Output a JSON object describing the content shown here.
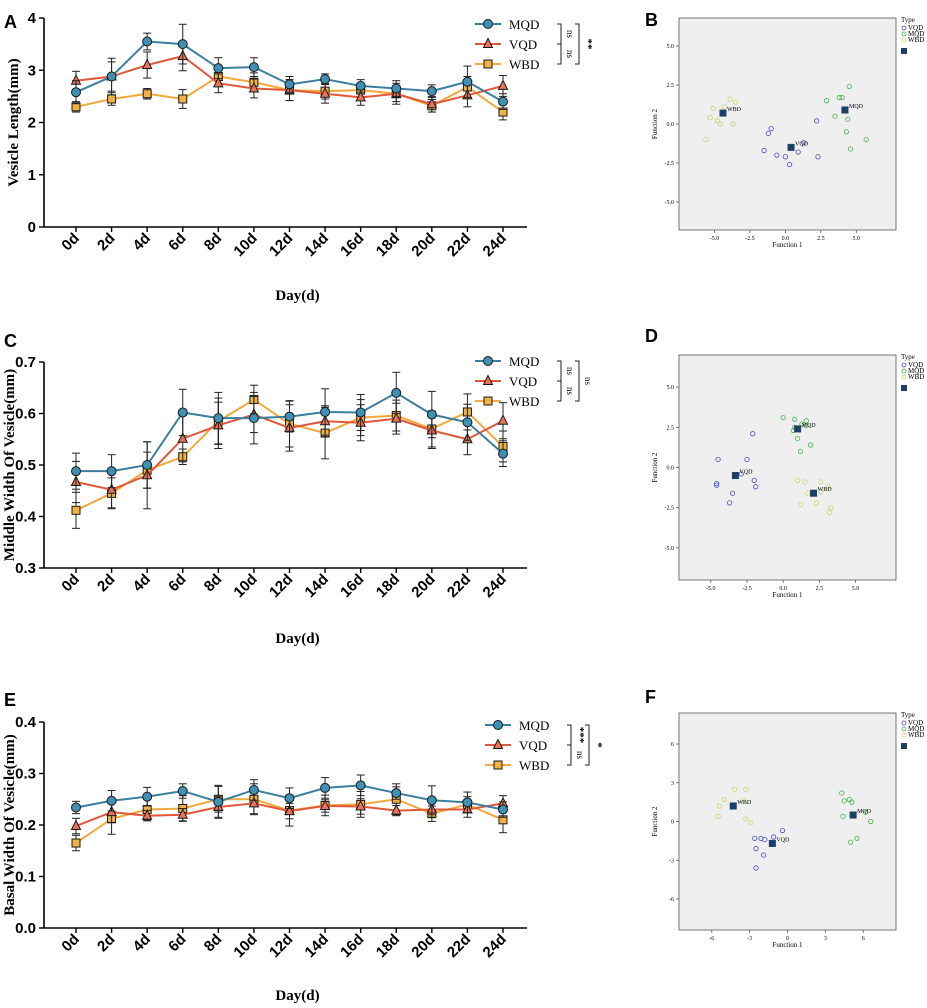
{
  "colors": {
    "MQD": "#3a7fa0",
    "VQD": "#e0573a",
    "WBD": "#f0a93a",
    "MQD_fill": "#3f90b3",
    "VQD_fill": "#e87357",
    "WBD_fill": "#f2b144",
    "centroid": "#1c3f66",
    "plot_bg": "#efefef",
    "disc_MQD": "#3fb24a",
    "disc_VQD": "#4a4ac0",
    "disc_WBD": "#c9d46a"
  },
  "chart_data": [
    {
      "id": "A",
      "letter": "A",
      "type": "line",
      "title": "",
      "xlabel": "Day(d)",
      "ylabel": "Vesicle Length(mm)",
      "ylim": [
        0,
        4
      ],
      "yticks": [
        0,
        1,
        2,
        3,
        4
      ],
      "ytick_labels": [
        "0",
        "1",
        "2",
        "3",
        "4"
      ],
      "categories": [
        "0d",
        "2d",
        "4d",
        "6d",
        "8d",
        "10d",
        "12d",
        "14d",
        "16d",
        "18d",
        "20d",
        "22d",
        "24d"
      ],
      "series": [
        {
          "name": "MQD",
          "marker": "circle",
          "values": [
            2.58,
            2.88,
            3.55,
            3.5,
            3.04,
            3.06,
            2.73,
            2.83,
            2.7,
            2.65,
            2.6,
            2.78,
            2.4
          ],
          "err": [
            0.22,
            0.35,
            0.16,
            0.38,
            0.2,
            0.18,
            0.15,
            0.1,
            0.12,
            0.15,
            0.12,
            0.3,
            0.15
          ]
        },
        {
          "name": "VQD",
          "marker": "triangle",
          "values": [
            2.8,
            2.88,
            3.1,
            3.27,
            2.75,
            2.65,
            2.62,
            2.55,
            2.48,
            2.55,
            2.35,
            2.52,
            2.7
          ],
          "err": [
            0.18,
            0.28,
            0.25,
            0.28,
            0.18,
            0.18,
            0.2,
            0.18,
            0.15,
            0.2,
            0.15,
            0.22,
            0.2
          ]
        },
        {
          "name": "WBD",
          "marker": "square",
          "values": [
            2.3,
            2.45,
            2.55,
            2.45,
            2.88,
            2.77,
            2.62,
            2.6,
            2.62,
            2.55,
            2.32,
            2.68,
            2.2
          ],
          "err": [
            0.1,
            0.12,
            0.1,
            0.18,
            0.18,
            0.18,
            0.2,
            0.15,
            0.12,
            0.15,
            0.12,
            0.2,
            0.15
          ]
        }
      ],
      "significance": {
        "inner_top": "ns",
        "inner_bottom": "ns",
        "outer": "**"
      }
    },
    {
      "id": "C",
      "letter": "C",
      "type": "line",
      "title": "",
      "xlabel": "Day(d)",
      "ylabel": "Middle Width Of Vesicle(mm)",
      "ylim": [
        0.3,
        0.7
      ],
      "yticks": [
        0.3,
        0.4,
        0.5,
        0.6,
        0.7
      ],
      "ytick_labels": [
        "0.3",
        "0.4",
        "0.5",
        "0.6",
        "0.7"
      ],
      "categories": [
        "0d",
        "2d",
        "4d",
        "6d",
        "8d",
        "10d",
        "12d",
        "14d",
        "16d",
        "18d",
        "20d",
        "22d",
        "24d"
      ],
      "series": [
        {
          "name": "MQD",
          "marker": "circle",
          "values": [
            0.488,
            0.488,
            0.5,
            0.602,
            0.591,
            0.591,
            0.594,
            0.603,
            0.602,
            0.64,
            0.598,
            0.583,
            0.522
          ],
          "err": [
            0.035,
            0.032,
            0.045,
            0.045,
            0.05,
            0.05,
            0.03,
            0.045,
            0.035,
            0.04,
            0.045,
            0.035,
            0.025
          ]
        },
        {
          "name": "VQD",
          "marker": "triangle",
          "values": [
            0.467,
            0.452,
            0.48,
            0.551,
            0.577,
            0.598,
            0.572,
            0.585,
            0.582,
            0.59,
            0.567,
            0.55,
            0.586
          ],
          "err": [
            0.04,
            0.035,
            0.065,
            0.045,
            0.045,
            0.035,
            0.045,
            0.03,
            0.035,
            0.03,
            0.035,
            0.03,
            0.035
          ]
        },
        {
          "name": "WBD",
          "marker": "square",
          "values": [
            0.412,
            0.445,
            0.49,
            0.516,
            0.585,
            0.627,
            0.58,
            0.562,
            0.592,
            0.596,
            0.57,
            0.603,
            0.536
          ],
          "err": [
            0.035,
            0.03,
            0.035,
            0.015,
            0.045,
            0.028,
            0.045,
            0.05,
            0.035,
            0.03,
            0.035,
            0.035,
            0.03
          ]
        }
      ],
      "significance": {
        "inner_top": "ns",
        "inner_bottom": "ns",
        "outer": "ns"
      }
    },
    {
      "id": "E",
      "letter": "E",
      "type": "line",
      "title": "",
      "xlabel": "Day(d)",
      "ylabel": "Basal Width Of Vesicle(mm)",
      "ylim": [
        0,
        0.4
      ],
      "yticks": [
        0,
        0.1,
        0.2,
        0.3,
        0.4
      ],
      "ytick_labels": [
        "0.0",
        "0.1",
        "0.2",
        "0.3",
        "0.4"
      ],
      "categories": [
        "0d",
        "2d",
        "4d",
        "6d",
        "8d",
        "10d",
        "12d",
        "14d",
        "16d",
        "18d",
        "20d",
        "22d",
        "24d"
      ],
      "series": [
        {
          "name": "MQD",
          "marker": "circle",
          "values": [
            0.234,
            0.247,
            0.255,
            0.266,
            0.245,
            0.268,
            0.252,
            0.272,
            0.277,
            0.262,
            0.248,
            0.244,
            0.23
          ],
          "err": [
            0.012,
            0.02,
            0.018,
            0.014,
            0.032,
            0.02,
            0.02,
            0.02,
            0.02,
            0.012,
            0.028,
            0.02,
            0.015
          ]
        },
        {
          "name": "VQD",
          "marker": "triangle",
          "values": [
            0.198,
            0.225,
            0.218,
            0.22,
            0.235,
            0.242,
            0.227,
            0.237,
            0.236,
            0.228,
            0.23,
            0.23,
            0.242
          ],
          "err": [
            0.015,
            0.02,
            0.01,
            0.012,
            0.02,
            0.02,
            0.015,
            0.012,
            0.015,
            0.01,
            0.015,
            0.015,
            0.015
          ]
        },
        {
          "name": "WBD",
          "marker": "square",
          "values": [
            0.165,
            0.212,
            0.23,
            0.232,
            0.25,
            0.25,
            0.228,
            0.238,
            0.24,
            0.25,
            0.222,
            0.24,
            0.21
          ],
          "err": [
            0.015,
            0.03,
            0.02,
            0.025,
            0.025,
            0.03,
            0.03,
            0.02,
            0.025,
            0.03,
            0.015,
            0.015,
            0.025
          ]
        }
      ],
      "significance": {
        "inner_top": "***",
        "inner_bottom": "ns",
        "outer": "*"
      }
    },
    {
      "id": "B",
      "letter": "B",
      "type": "scatter",
      "xlabel": "Function 1",
      "ylabel": "Function 2",
      "xlim": [
        -7.5,
        7.8
      ],
      "ylim": [
        -6.8,
        6.8
      ],
      "xticks": [
        -5,
        -2.5,
        0,
        2.5,
        5
      ],
      "xtick_labels": [
        "-5.0",
        "-2.5",
        "0.0",
        "2.5",
        "5.0"
      ],
      "yticks": [
        5,
        2.5,
        0,
        -2.5,
        -5
      ],
      "ytick_labels": [
        "5.0",
        "2.5",
        "0.0",
        "-2.5",
        "-5.0"
      ],
      "legend_title": "Type",
      "legend_items": [
        "VQD",
        "MQD",
        "WBD"
      ],
      "groups": [
        {
          "name": "VQD",
          "points": [
            [
              -1.0,
              -0.3
            ],
            [
              -1.2,
              -0.6
            ],
            [
              -1.5,
              -1.7
            ],
            [
              -0.6,
              -2.0
            ],
            [
              0.0,
              -2.1
            ],
            [
              0.3,
              -2.6
            ],
            [
              0.9,
              -1.8
            ],
            [
              1.3,
              -1.2
            ],
            [
              2.2,
              0.2
            ],
            [
              2.3,
              -2.1
            ]
          ]
        },
        {
          "name": "MQD",
          "points": [
            [
              2.9,
              1.5
            ],
            [
              3.5,
              0.5
            ],
            [
              3.8,
              1.7
            ],
            [
              4.0,
              1.7
            ],
            [
              4.5,
              2.4
            ],
            [
              4.3,
              -0.5
            ],
            [
              4.6,
              -1.6
            ],
            [
              5.7,
              -1.0
            ],
            [
              4.4,
              0.3
            ]
          ]
        },
        {
          "name": "WBD",
          "points": [
            [
              -5.6,
              -1.0
            ],
            [
              -5.3,
              0.4
            ],
            [
              -5.1,
              1.0
            ],
            [
              -4.8,
              0.2
            ],
            [
              -4.6,
              0.0
            ],
            [
              -4.3,
              1.1
            ],
            [
              -3.9,
              1.6
            ],
            [
              -3.7,
              0.0
            ],
            [
              -3.5,
              1.4
            ]
          ]
        }
      ],
      "centroids": [
        {
          "name": "VQD",
          "x": 0.4,
          "y": -1.5
        },
        {
          "name": "MQD",
          "x": 4.2,
          "y": 0.9
        },
        {
          "name": "WBD",
          "x": -4.4,
          "y": 0.7
        }
      ]
    },
    {
      "id": "D",
      "letter": "D",
      "type": "scatter",
      "xlabel": "Function 1",
      "ylabel": "Function 2",
      "xlim": [
        -7.2,
        7.8
      ],
      "ylim": [
        -7.0,
        7.0
      ],
      "xticks": [
        -5,
        -2.5,
        0,
        2.5,
        5
      ],
      "xtick_labels": [
        "-5.0",
        "-2.5",
        "0.0",
        "2.5",
        "5.0"
      ],
      "yticks": [
        5,
        2.5,
        0,
        -2.5,
        -5
      ],
      "ytick_labels": [
        "5.0",
        "2.5",
        "0.0",
        "-2.5",
        "-5.0"
      ],
      "legend_title": "Type",
      "legend_items": [
        "VQD",
        "MQD",
        "WBD"
      ],
      "groups": [
        {
          "name": "VQD",
          "points": [
            [
              -4.5,
              0.5
            ],
            [
              -4.6,
              -1.0
            ],
            [
              -4.6,
              -1.1
            ],
            [
              -3.7,
              -2.2
            ],
            [
              -3.5,
              -1.6
            ],
            [
              -2.9,
              -0.4
            ],
            [
              -2.5,
              0.5
            ],
            [
              -2.0,
              -0.8
            ],
            [
              -1.9,
              -1.2
            ],
            [
              -2.1,
              2.1
            ]
          ]
        },
        {
          "name": "MQD",
          "points": [
            [
              0.0,
              3.1
            ],
            [
              0.8,
              3.0
            ],
            [
              0.8,
              2.5
            ],
            [
              1.0,
              1.8
            ],
            [
              1.3,
              2.7
            ],
            [
              1.6,
              2.9
            ],
            [
              1.2,
              1.0
            ],
            [
              1.9,
              1.4
            ],
            [
              1.6,
              2.6
            ],
            [
              0.7,
              2.3
            ]
          ]
        },
        {
          "name": "WBD",
          "points": [
            [
              1.0,
              -0.8
            ],
            [
              1.5,
              -0.9
            ],
            [
              1.7,
              -1.6
            ],
            [
              2.6,
              -0.9
            ],
            [
              2.6,
              -1.5
            ],
            [
              3.1,
              -1.2
            ],
            [
              2.3,
              -2.2
            ],
            [
              1.2,
              -2.3
            ],
            [
              3.3,
              -2.5
            ],
            [
              3.2,
              -2.8
            ]
          ]
        }
      ],
      "centroids": [
        {
          "name": "VQD",
          "x": -3.3,
          "y": -0.5
        },
        {
          "name": "MQD",
          "x": 1.0,
          "y": 2.4
        },
        {
          "name": "WBD",
          "x": 2.1,
          "y": -1.6
        }
      ]
    },
    {
      "id": "F",
      "letter": "F",
      "type": "scatter",
      "xlabel": "Function 1",
      "ylabel": "Function 2",
      "xlim": [
        -8.6,
        8.6
      ],
      "ylim": [
        -8.4,
        8.4
      ],
      "xticks": [
        -6,
        -3,
        0,
        3,
        6
      ],
      "xtick_labels": [
        "-6",
        "-3",
        "0",
        "3",
        "6"
      ],
      "yticks": [
        6,
        3,
        0,
        -3,
        -6
      ],
      "ytick_labels": [
        "6",
        "3",
        "0",
        "-3",
        "-6"
      ],
      "legend_title": "Type",
      "legend_items": [
        "VQD",
        "MQD",
        "WBD"
      ],
      "groups": [
        {
          "name": "VQD",
          "points": [
            [
              -2.6,
              -1.3
            ],
            [
              -2.5,
              -2.1
            ],
            [
              -2.1,
              -1.3
            ],
            [
              -1.8,
              -1.4
            ],
            [
              -1.1,
              -1.2
            ],
            [
              -0.4,
              -0.7
            ],
            [
              -2.5,
              -3.6
            ],
            [
              -1.9,
              -2.6
            ]
          ]
        },
        {
          "name": "MQD",
          "points": [
            [
              4.3,
              2.2
            ],
            [
              4.5,
              1.6
            ],
            [
              4.9,
              1.7
            ],
            [
              5.1,
              1.5
            ],
            [
              4.4,
              0.4
            ],
            [
              5.5,
              -1.3
            ],
            [
              5.0,
              -1.6
            ],
            [
              6.2,
              0.7
            ],
            [
              6.6,
              0.0
            ]
          ]
        },
        {
          "name": "WBD",
          "points": [
            [
              -5.4,
              1.2
            ],
            [
              -5.5,
              0.4
            ],
            [
              -5.0,
              1.7
            ],
            [
              -4.2,
              2.5
            ],
            [
              -3.3,
              2.5
            ],
            [
              -3.5,
              1.6
            ],
            [
              -3.3,
              0.2
            ],
            [
              -2.9,
              -0.1
            ]
          ]
        }
      ],
      "centroids": [
        {
          "name": "VQD",
          "x": -1.2,
          "y": -1.7
        },
        {
          "name": "MQD",
          "x": 5.2,
          "y": 0.5
        },
        {
          "name": "WBD",
          "x": -4.3,
          "y": 1.2
        }
      ]
    }
  ]
}
